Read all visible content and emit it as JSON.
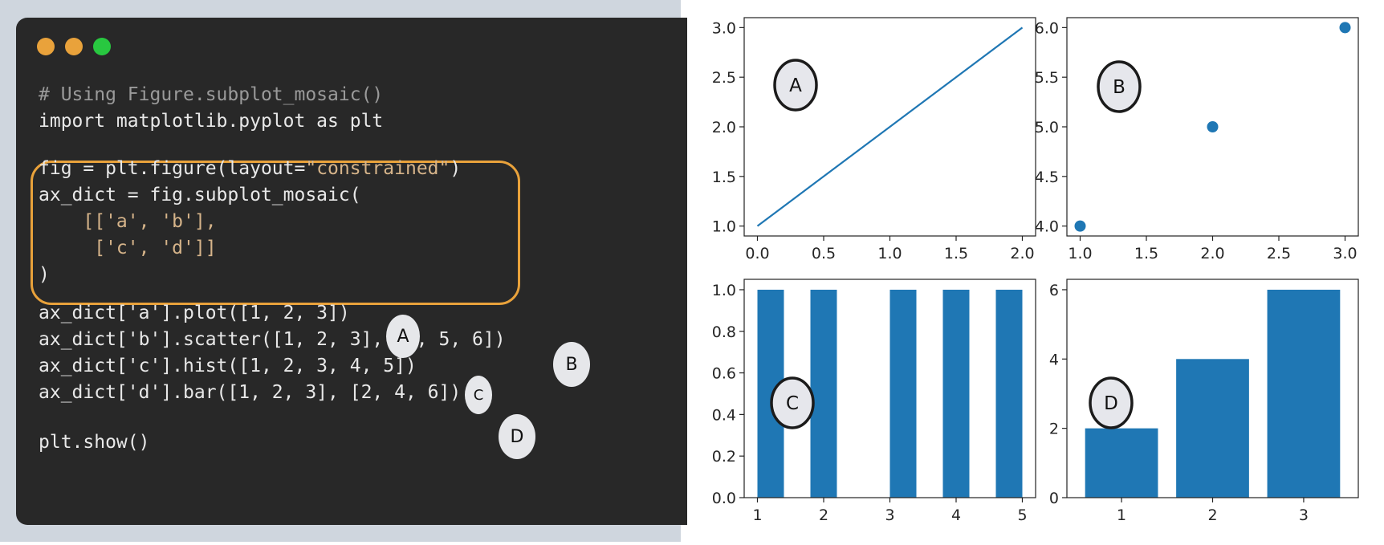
{
  "editor": {
    "window_dots": [
      "close",
      "minimize",
      "maximize"
    ],
    "colors": {
      "background": "#282828",
      "highlight": "#e9a23b",
      "comment": "#9a9a9a",
      "string": "#d6b48a"
    },
    "comment_line": "# Using Figure.subplot_mosaic()",
    "import_line": "import matplotlib.pyplot as plt",
    "fig_line_prefix": "fig = plt.figure(layout=",
    "fig_line_string": "\"constrained\"",
    "fig_line_suffix": ")",
    "axdict_line": "ax_dict = fig.subplot_mosaic(",
    "mosaic_row1": "    [['a', 'b'],",
    "mosaic_row2": "     ['c', 'd']]",
    "close_paren": ")",
    "call_a": "ax_dict['a'].plot([1, 2, 3])",
    "call_b": "ax_dict['b'].scatter([1, 2, 3], [4, 5, 6])",
    "call_c": "ax_dict['c'].hist([1, 2, 3, 4, 5])",
    "call_d": "ax_dict['d'].bar([1, 2, 3], [2, 4, 6])",
    "show_line": "plt.show()",
    "badges": [
      "A",
      "B",
      "C",
      "D"
    ]
  },
  "chart_data": [
    {
      "type": "line",
      "badge": "A",
      "x": [
        0,
        1,
        2
      ],
      "y": [
        1,
        2,
        3
      ],
      "xlim": [
        -0.1,
        2.1
      ],
      "ylim": [
        0.9,
        3.1
      ],
      "xticks": [
        0.0,
        0.5,
        1.0,
        1.5,
        2.0
      ],
      "xtick_labels": [
        "0.0",
        "0.5",
        "1.0",
        "1.5",
        "2.0"
      ],
      "yticks": [
        1.0,
        1.5,
        2.0,
        2.5,
        3.0
      ],
      "ytick_labels": [
        "1.0",
        "1.5",
        "2.0",
        "2.5",
        "3.0"
      ],
      "color": "#1f77b4",
      "grid": false
    },
    {
      "type": "scatter",
      "badge": "B",
      "x": [
        1,
        2,
        3
      ],
      "y": [
        4,
        5,
        6
      ],
      "xlim": [
        0.9,
        3.1
      ],
      "ylim": [
        3.9,
        6.1
      ],
      "xticks": [
        1.0,
        1.5,
        2.0,
        2.5,
        3.0
      ],
      "xtick_labels": [
        "1.0",
        "1.5",
        "2.0",
        "2.5",
        "3.0"
      ],
      "yticks": [
        4.0,
        4.5,
        5.0,
        5.5,
        6.0
      ],
      "ytick_labels": [
        "4.0",
        "4.5",
        "5.0",
        "5.5",
        "6.0"
      ],
      "color": "#1f77b4",
      "grid": false
    },
    {
      "type": "bar",
      "subtype": "histogram",
      "badge": "C",
      "bins": [
        [
          1.0,
          1.4
        ],
        [
          1.8,
          2.2
        ],
        [
          3.0,
          3.4
        ],
        [
          3.8,
          4.2
        ],
        [
          4.6,
          5.0
        ]
      ],
      "values": [
        1,
        1,
        1,
        1,
        1
      ],
      "xlim": [
        0.8,
        5.2
      ],
      "ylim": [
        0,
        1.05
      ],
      "xticks": [
        1,
        2,
        3,
        4,
        5
      ],
      "xtick_labels": [
        "1",
        "2",
        "3",
        "4",
        "5"
      ],
      "yticks": [
        0.0,
        0.2,
        0.4,
        0.6,
        0.8,
        1.0
      ],
      "ytick_labels": [
        "0.0",
        "0.2",
        "0.4",
        "0.6",
        "0.8",
        "1.0"
      ],
      "color": "#1f77b4",
      "grid": false
    },
    {
      "type": "bar",
      "badge": "D",
      "categories": [
        1,
        2,
        3
      ],
      "values": [
        2,
        4,
        6
      ],
      "bar_width": 0.8,
      "xlim": [
        0.4,
        3.6
      ],
      "ylim": [
        0,
        6.3
      ],
      "xticks": [
        1,
        2,
        3
      ],
      "xtick_labels": [
        "1",
        "2",
        "3"
      ],
      "yticks": [
        0,
        2,
        4,
        6
      ],
      "ytick_labels": [
        "0",
        "2",
        "4",
        "6"
      ],
      "color": "#1f77b4",
      "grid": false
    }
  ]
}
